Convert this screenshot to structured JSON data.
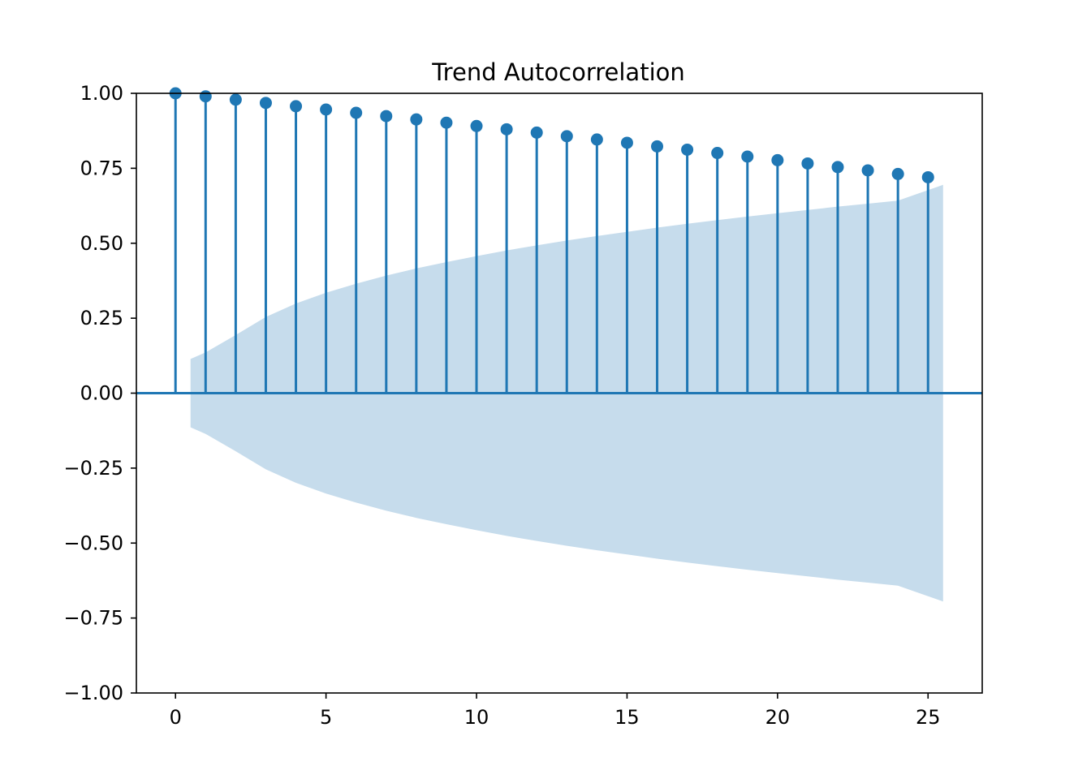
{
  "chart_data": {
    "type": "stem",
    "title": "Trend Autocorrelation",
    "xlabel": "",
    "ylabel": "",
    "xlim": [
      -1.3,
      26.8
    ],
    "ylim": [
      -1.0,
      1.0
    ],
    "x_ticks": [
      0,
      5,
      10,
      15,
      20,
      25
    ],
    "x_tick_labels": [
      "0",
      "5",
      "10",
      "15",
      "20",
      "25"
    ],
    "y_ticks": [
      1.0,
      0.75,
      0.5,
      0.25,
      0.0,
      -0.25,
      -0.5,
      -0.75,
      -1.0
    ],
    "y_tick_labels": [
      "1.00",
      "0.75",
      "0.50",
      "0.25",
      "0.00",
      "−0.25",
      "−0.50",
      "−0.75",
      "−1.00"
    ],
    "grid": false,
    "series": [
      {
        "lags": [
          0,
          1,
          2,
          3,
          4,
          5,
          6,
          7,
          8,
          9,
          10,
          11,
          12,
          13,
          14,
          15,
          16,
          17,
          18,
          19,
          20,
          21,
          22,
          23,
          24,
          25
        ],
        "values": [
          1.0,
          0.99,
          0.979,
          0.968,
          0.957,
          0.946,
          0.935,
          0.924,
          0.913,
          0.902,
          0.891,
          0.88,
          0.869,
          0.857,
          0.846,
          0.835,
          0.823,
          0.812,
          0.801,
          0.789,
          0.777,
          0.766,
          0.754,
          0.743,
          0.731,
          0.72
        ]
      }
    ],
    "confidence_band": {
      "x": [
        0.5,
        1,
        2,
        3,
        4,
        5,
        6,
        7,
        8,
        9,
        10,
        11,
        12,
        13,
        14,
        15,
        16,
        17,
        18,
        19,
        20,
        21,
        22,
        23,
        24,
        25.5
      ],
      "upper": [
        0.114,
        0.136,
        0.194,
        0.254,
        0.299,
        0.335,
        0.365,
        0.392,
        0.416,
        0.437,
        0.457,
        0.476,
        0.493,
        0.509,
        0.524,
        0.538,
        0.552,
        0.565,
        0.577,
        0.589,
        0.6,
        0.611,
        0.622,
        0.632,
        0.642,
        0.695
      ]
    },
    "colors": {
      "stem": "#1f77b4",
      "band": "#c6dcec",
      "axis": "#000000"
    }
  }
}
